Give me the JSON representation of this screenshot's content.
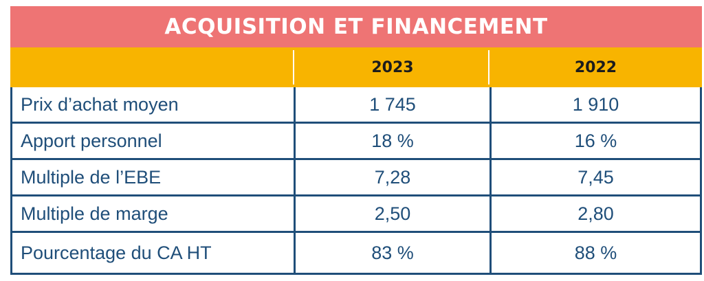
{
  "title": "ACQUISITION ET FINANCEMENT",
  "columns": [
    "2023",
    "2022"
  ],
  "rows": [
    {
      "label": "Prix d’achat moyen",
      "values": [
        "1 745",
        "1 910"
      ]
    },
    {
      "label": "Apport personnel",
      "values": [
        "18 %",
        "16 %"
      ]
    },
    {
      "label": "Multiple de l’EBE",
      "values": [
        "7,28",
        "7,45"
      ]
    },
    {
      "label": "Multiple de marge",
      "values": [
        "2,50",
        "2,80"
      ]
    },
    {
      "label": "Pourcentage du CA HT",
      "values": [
        "83 %",
        "88 %"
      ]
    }
  ],
  "colors": {
    "title_bg": "#ee7474",
    "header_bg": "#f8b400",
    "border": "#1f4e79",
    "text": "#1f4e79"
  }
}
